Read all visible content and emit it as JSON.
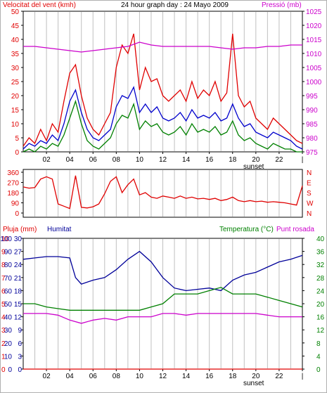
{
  "title": "24 hour graph day : 24 Mayo 2009",
  "colors": {
    "wind": "#e00000",
    "gust": "#0000cc",
    "green": "#008000",
    "pressure": "#cc00cc",
    "humidity": "#000099",
    "temperature": "#008000",
    "dew": "#cc00cc",
    "grid": "#c0c0c0",
    "frame": "#000000"
  },
  "chart_data": [
    {
      "type": "line",
      "title": "24 hour graph day : 24 Mayo 2009",
      "ylabel": "Velocitat del vent (kmh)",
      "y2label": "Pressió (mb)",
      "ylim": [
        0,
        50
      ],
      "y2lim": [
        975,
        1025
      ],
      "yticks": [
        0,
        5,
        10,
        15,
        20,
        25,
        30,
        35,
        40,
        45,
        50
      ],
      "y2ticks": [
        975,
        980,
        985,
        990,
        995,
        1000,
        1005,
        1010,
        1015,
        1020,
        1025
      ],
      "xticks": [
        "02",
        "04",
        "06",
        "08",
        "10",
        "12",
        "14",
        "16",
        "18",
        "20",
        "22",
        "|"
      ],
      "annotation": "sunset",
      "series": [
        {
          "role": "wind",
          "color": "#e00000",
          "x": [
            0,
            0.5,
            1,
            1.5,
            2,
            2.5,
            3,
            3.5,
            4,
            4.5,
            5,
            5.5,
            6,
            6.5,
            7,
            7.5,
            8,
            8.5,
            9,
            9.5,
            10,
            10.5,
            11,
            11.5,
            12,
            12.5,
            13,
            13.5,
            14,
            14.5,
            15,
            15.5,
            16,
            16.5,
            17,
            17.5,
            18,
            18.5,
            19,
            19.5,
            20,
            20.5,
            21,
            21.5,
            22,
            22.5,
            23,
            23.5,
            24
          ],
          "values": [
            2,
            5,
            3,
            8,
            4,
            10,
            7,
            18,
            28,
            31,
            20,
            12,
            8,
            6,
            10,
            14,
            30,
            38,
            35,
            42,
            22,
            30,
            25,
            26,
            20,
            18,
            20,
            22,
            18,
            25,
            19,
            22,
            20,
            25,
            18,
            21,
            42,
            20,
            16,
            18,
            12,
            10,
            8,
            12,
            10,
            8,
            6,
            4,
            3
          ]
        },
        {
          "role": "gust",
          "color": "#0000cc",
          "x": [
            0,
            0.5,
            1,
            1.5,
            2,
            2.5,
            3,
            3.5,
            4,
            4.5,
            5,
            5.5,
            6,
            6.5,
            7,
            7.5,
            8,
            8.5,
            9,
            9.5,
            10,
            10.5,
            11,
            11.5,
            12,
            12.5,
            13,
            13.5,
            14,
            14.5,
            15,
            15.5,
            16,
            16.5,
            17,
            17.5,
            18,
            18.5,
            19,
            19.5,
            20,
            20.5,
            21,
            21.5,
            22,
            22.5,
            23,
            23.5,
            24
          ],
          "values": [
            1,
            3,
            2,
            4,
            3,
            6,
            4,
            10,
            18,
            22,
            14,
            8,
            5,
            4,
            6,
            8,
            16,
            20,
            19,
            23,
            14,
            17,
            14,
            16,
            12,
            11,
            12,
            14,
            11,
            15,
            12,
            13,
            12,
            14,
            11,
            12,
            17,
            12,
            9,
            10,
            7,
            6,
            5,
            7,
            6,
            5,
            4,
            2,
            1
          ]
        },
        {
          "role": "green",
          "color": "#008000",
          "x": [
            0,
            0.5,
            1,
            1.5,
            2,
            2.5,
            3,
            3.5,
            4,
            4.5,
            5,
            5.5,
            6,
            6.5,
            7,
            7.5,
            8,
            8.5,
            9,
            9.5,
            10,
            10.5,
            11,
            11.5,
            12,
            12.5,
            13,
            13.5,
            14,
            14.5,
            15,
            15.5,
            16,
            16.5,
            17,
            17.5,
            18,
            18.5,
            19,
            19.5,
            20,
            20.5,
            21,
            21.5,
            22,
            22.5,
            23,
            23.5,
            24
          ],
          "values": [
            0,
            1,
            0,
            2,
            1,
            3,
            2,
            6,
            12,
            18,
            10,
            4,
            2,
            1,
            3,
            5,
            10,
            13,
            12,
            17,
            8,
            11,
            9,
            10,
            7,
            6,
            7,
            9,
            6,
            10,
            7,
            8,
            7,
            9,
            6,
            7,
            11,
            6,
            4,
            5,
            3,
            2,
            1,
            3,
            2,
            1,
            1,
            0,
            0
          ]
        },
        {
          "role": "pressure",
          "color": "#cc00cc",
          "axis": "y2",
          "x": [
            0,
            1,
            2,
            3,
            4,
            5,
            6,
            7,
            8,
            9,
            10,
            11,
            12,
            13,
            14,
            15,
            16,
            17,
            18,
            19,
            20,
            21,
            22,
            23,
            24
          ],
          "values": [
            1012.5,
            1012.5,
            1012,
            1011.5,
            1011,
            1010.5,
            1011,
            1011.5,
            1012,
            1012.5,
            1014,
            1013,
            1012.5,
            1012.5,
            1012.5,
            1012.5,
            1012.5,
            1012,
            1011.5,
            1012,
            1012,
            1012.5,
            1012.5,
            1013,
            1013
          ]
        }
      ]
    },
    {
      "type": "line",
      "ylim": [
        0,
        360
      ],
      "yticks": [
        0,
        90,
        180,
        270,
        360
      ],
      "y2ticks": [
        "N",
        "W",
        "S",
        "E",
        "N"
      ],
      "series": [
        {
          "role": "direction",
          "color": "#e00000",
          "x": [
            0,
            0.5,
            1,
            1.5,
            2,
            2.5,
            3,
            3.5,
            4,
            4.5,
            5,
            5.5,
            6,
            6.5,
            7,
            7.5,
            8,
            8.5,
            9,
            9.5,
            10,
            10.5,
            11,
            11.5,
            12,
            12.5,
            13,
            13.5,
            14,
            14.5,
            15,
            15.5,
            16,
            16.5,
            17,
            17.5,
            18,
            18.5,
            19,
            19.5,
            20,
            20.5,
            21,
            21.5,
            22,
            22.5,
            23,
            23.5,
            24
          ],
          "values": [
            230,
            220,
            225,
            300,
            320,
            300,
            80,
            60,
            40,
            330,
            50,
            45,
            55,
            80,
            170,
            280,
            320,
            180,
            250,
            300,
            160,
            180,
            140,
            130,
            150,
            140,
            130,
            150,
            130,
            140,
            125,
            130,
            120,
            130,
            110,
            120,
            140,
            110,
            100,
            110,
            100,
            105,
            95,
            100,
            95,
            90,
            80,
            70,
            240
          ]
        }
      ]
    },
    {
      "type": "line",
      "ylabel": "Pluja (mm)",
      "ylabel2": "Humitat",
      "y2label": "Temperatura (°C)",
      "y2label2": "Punt rosada",
      "rain_ticks": [
        0,
        1,
        2,
        3,
        4,
        5,
        6,
        7,
        8,
        9,
        10
      ],
      "hum_ticks": [
        0,
        10,
        20,
        30,
        40,
        50,
        60,
        70,
        80,
        90,
        100
      ],
      "lefttemp_ticks": [
        0,
        3,
        6,
        9,
        12,
        15,
        18,
        21,
        24,
        27,
        30
      ],
      "righttemp_ticks": [
        0,
        4,
        8,
        12,
        16,
        20,
        24,
        28,
        32,
        36,
        40
      ],
      "xticks": [
        "02",
        "04",
        "06",
        "08",
        "10",
        "12",
        "14",
        "16",
        "18",
        "20",
        "22",
        "|"
      ],
      "annotation": "sunset",
      "series": [
        {
          "role": "humidity",
          "color": "#000099",
          "ylim": [
            0,
            100
          ],
          "x": [
            0,
            1,
            2,
            3,
            4,
            4.5,
            5,
            6,
            7,
            8,
            9,
            10,
            11,
            12,
            13,
            14,
            15,
            16,
            17,
            18,
            19,
            20,
            21,
            22,
            23,
            24
          ],
          "values": [
            84,
            85,
            86,
            86,
            85,
            70,
            65,
            68,
            70,
            76,
            84,
            90,
            82,
            70,
            62,
            60,
            61,
            62,
            60,
            68,
            72,
            74,
            78,
            82,
            84,
            87
          ]
        },
        {
          "role": "temperature",
          "color": "#008000",
          "ylim": [
            0,
            40
          ],
          "x": [
            0,
            1,
            2,
            3,
            4,
            5,
            6,
            7,
            8,
            9,
            10,
            11,
            12,
            13,
            14,
            15,
            16,
            17,
            18,
            19,
            20,
            21,
            22,
            23,
            24
          ],
          "values": [
            20,
            20,
            19,
            18.5,
            18,
            18,
            18,
            18,
            18,
            18,
            18,
            19,
            20,
            23,
            23,
            23,
            24,
            25,
            23,
            23,
            23,
            22,
            21,
            20,
            19
          ]
        },
        {
          "role": "dew",
          "color": "#cc00cc",
          "ylim": [
            0,
            40
          ],
          "x": [
            0,
            1,
            2,
            3,
            4,
            5,
            6,
            7,
            8,
            9,
            10,
            11,
            12,
            13,
            14,
            15,
            16,
            17,
            18,
            19,
            20,
            21,
            22,
            23,
            24
          ],
          "values": [
            17,
            17,
            17,
            16.5,
            15,
            14,
            15,
            15.5,
            15,
            16,
            16,
            16,
            17,
            17,
            16.5,
            17,
            17,
            17,
            17,
            17,
            17,
            16.5,
            16,
            16,
            16
          ]
        },
        {
          "role": "rain",
          "color": "#e00000",
          "ylim": [
            0,
            10
          ],
          "x": [
            0,
            24
          ],
          "values": [
            0,
            0
          ]
        }
      ]
    }
  ]
}
